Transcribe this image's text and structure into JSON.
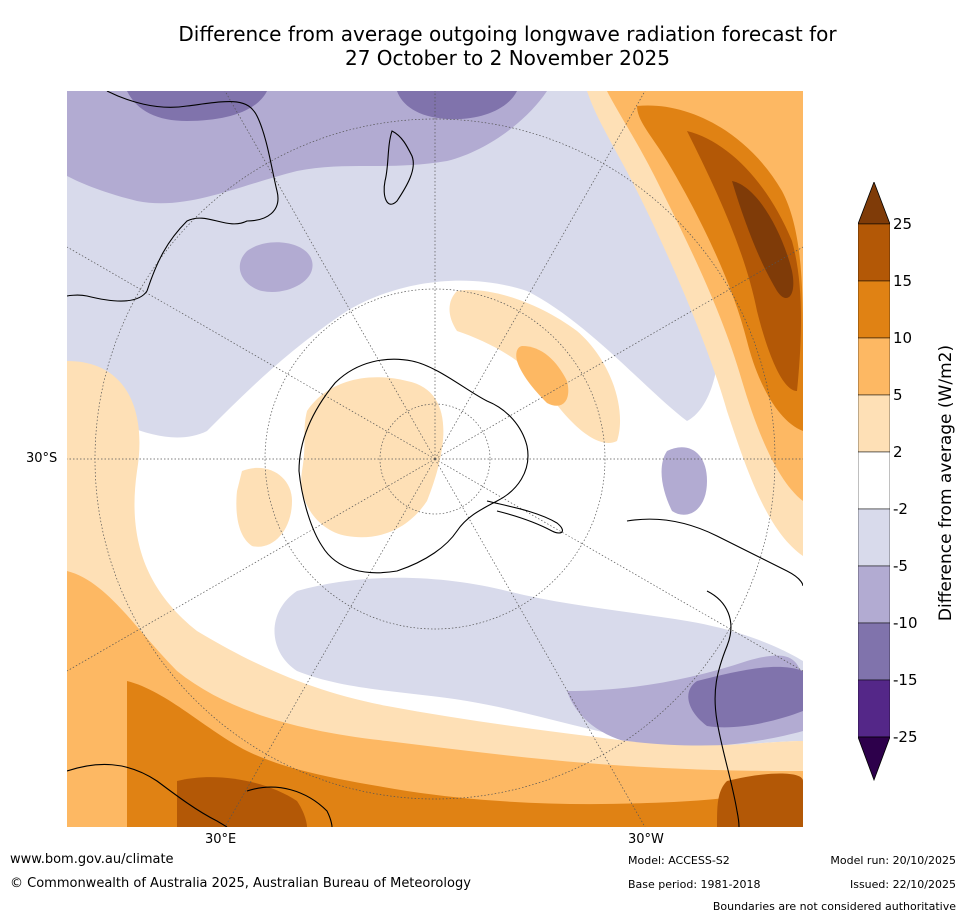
{
  "title": {
    "line1": "Difference from average outgoing longwave radiation forecast for",
    "line2": "27 October to 2 November 2025"
  },
  "axes": {
    "lat_label": "30°S",
    "lon_labels": [
      "30°E",
      "30°W"
    ]
  },
  "colorbar": {
    "label": "Difference from average (W/m2)",
    "ticks": [
      "25",
      "15",
      "10",
      "5",
      "2",
      "-2",
      "-5",
      "-10",
      "-15",
      "-25"
    ],
    "colors": {
      "over": "#7f3b08",
      "c15_25": "#b35806",
      "c10_15": "#e08214",
      "c5_10": "#fdb863",
      "c2_5": "#fee0b6",
      "neutral": "#ffffff",
      "cm2_m5": "#d8daeb",
      "cm5_m10": "#b2abd2",
      "cm10_m15": "#8073ac",
      "cm15_m25": "#542788",
      "under": "#2d004b"
    }
  },
  "footer": {
    "website": "www.bom.gov.au/climate",
    "copyright": "© Commonwealth of Australia 2025, Australian Bureau of Meteorology",
    "model": "Model: ACCESS-S2",
    "base_period": "Base period: 1981-2018",
    "model_run": "Model run: 20/10/2025",
    "issued": "Issued: 22/10/2025",
    "disclaimer": "Boundaries are not considered authoritative"
  }
}
